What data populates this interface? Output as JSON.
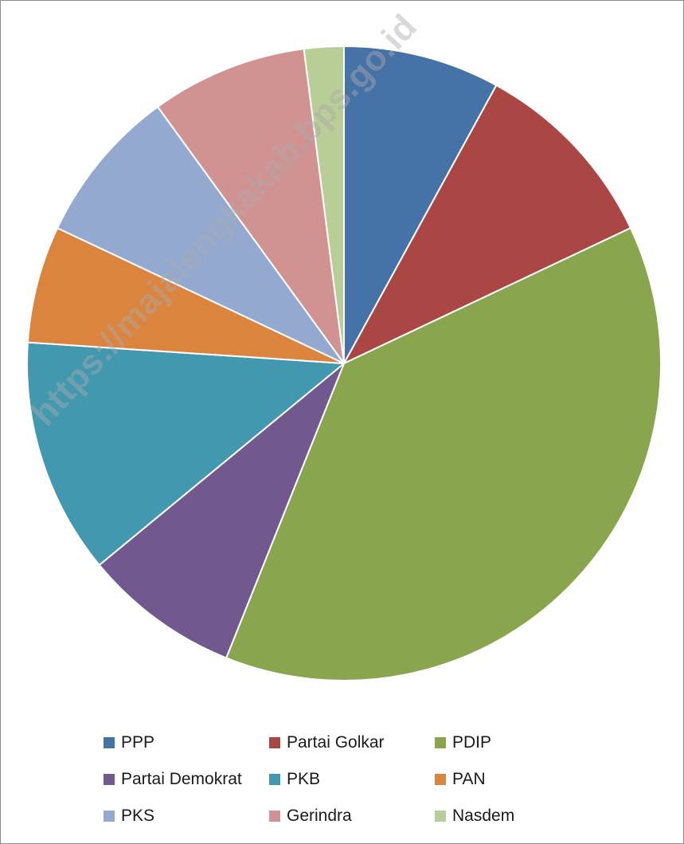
{
  "chart_data": {
    "type": "pie",
    "title": "",
    "slices": [
      {
        "label": "PPP",
        "value": 8.3,
        "color": "#4572a7"
      },
      {
        "label": "Partai Golkar",
        "value": 10.4,
        "color": "#aa4643"
      },
      {
        "label": "PDIP",
        "value": 39.6,
        "color": "#89a54e"
      },
      {
        "label": "Partai Demokrat",
        "value": 8.3,
        "color": "#71588f"
      },
      {
        "label": "PKB",
        "value": 12.5,
        "color": "#4198af"
      },
      {
        "label": "PAN",
        "value": 6.2,
        "color": "#db843d"
      },
      {
        "label": "PKS",
        "value": 8.3,
        "color": "#93a9cf"
      },
      {
        "label": "Gerindra",
        "value": 8.3,
        "color": "#d19392"
      },
      {
        "label": "Nasdem",
        "value": 2.1,
        "color": "#b9cd96"
      }
    ],
    "legend_position": "bottom"
  },
  "watermark": "https://majalengkakab.bps.go.id"
}
